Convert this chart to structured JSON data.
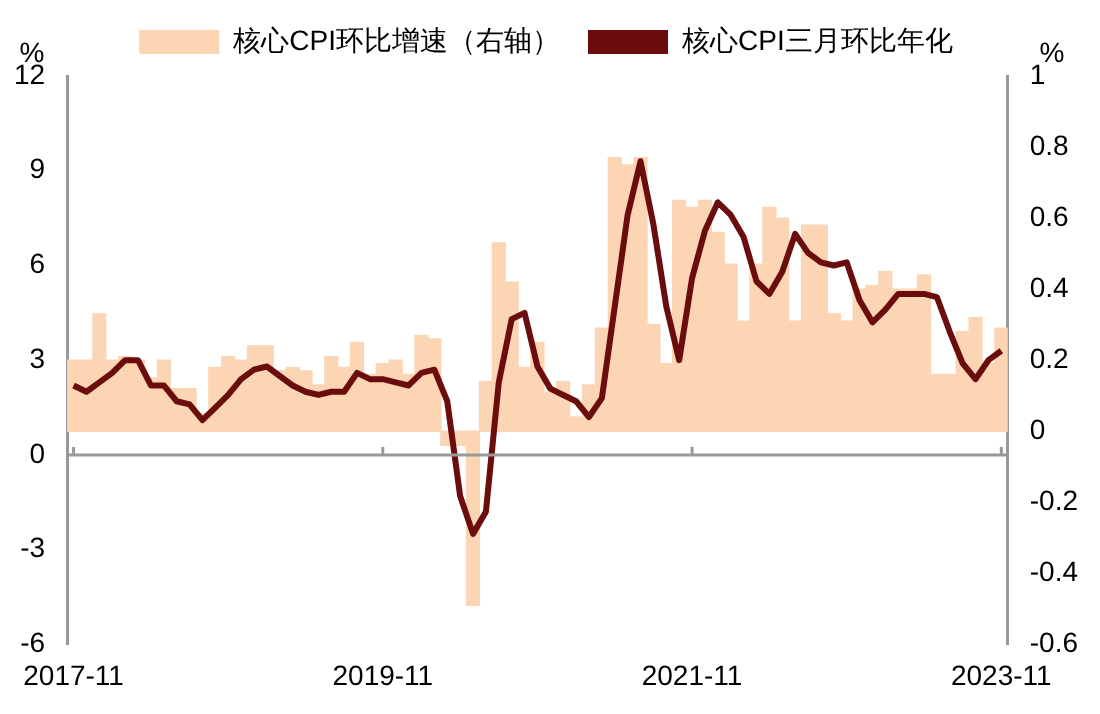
{
  "chart_data": {
    "type": "bar",
    "categories": [
      "2017-11",
      null,
      null,
      null,
      null,
      null,
      null,
      null,
      null,
      null,
      null,
      null,
      null,
      null,
      null,
      null,
      null,
      null,
      null,
      null,
      null,
      null,
      null,
      null,
      "2019-11",
      null,
      null,
      null,
      null,
      null,
      null,
      null,
      null,
      null,
      null,
      null,
      null,
      null,
      null,
      null,
      null,
      null,
      null,
      null,
      null,
      null,
      null,
      null,
      "2021-11",
      null,
      null,
      null,
      null,
      null,
      null,
      null,
      null,
      null,
      null,
      null,
      null,
      null,
      null,
      null,
      null,
      null,
      null,
      null,
      null,
      null,
      null,
      null,
      "2023-11"
    ],
    "series": [
      {
        "name": "核心CPI环比增速（右轴）",
        "axis": "y2",
        "color": "#fcd5b4",
        "values": [
          0.2,
          0.2,
          0.33,
          0.2,
          0.21,
          0.2,
          0.15,
          0.2,
          0.12,
          0.12,
          0.05,
          0.18,
          0.21,
          0.2,
          0.24,
          0.24,
          0.17,
          0.18,
          0.17,
          0.13,
          0.21,
          0.18,
          0.25,
          0.16,
          0.19,
          0.2,
          0.16,
          0.27,
          0.26,
          -0.04,
          -0.04,
          -0.49,
          0.14,
          0.53,
          0.42,
          0.18,
          0.25,
          0.11,
          0.14,
          0.04,
          0.13,
          0.29,
          0.77,
          0.75,
          0.77,
          0.3,
          0.19,
          0.65,
          0.63,
          0.65,
          0.56,
          0.47,
          0.31,
          0.47,
          0.63,
          0.6,
          0.31,
          0.58,
          0.58,
          0.33,
          0.31,
          0.4,
          0.41,
          0.45,
          0.4,
          0.4,
          0.44,
          0.16,
          0.16,
          0.28,
          0.32,
          0.19,
          0.29
        ]
      },
      {
        "name": "核心CPI三月环比年化",
        "type": "line",
        "color": "#6b0d0d",
        "values": [
          2.2,
          2.0,
          2.3,
          2.6,
          3.0,
          3.0,
          2.2,
          2.2,
          1.7,
          1.6,
          1.1,
          1.5,
          1.9,
          2.4,
          2.7,
          2.8,
          2.5,
          2.2,
          2.0,
          1.9,
          2.0,
          2.0,
          2.6,
          2.4,
          2.4,
          2.3,
          2.2,
          2.6,
          2.7,
          1.7,
          -1.3,
          -2.5,
          -1.8,
          2.3,
          4.3,
          4.5,
          2.8,
          2.1,
          1.9,
          1.7,
          1.2,
          1.8,
          4.7,
          7.6,
          9.3,
          7.3,
          4.7,
          3.0,
          5.6,
          7.1,
          8.0,
          7.6,
          6.9,
          5.5,
          5.1,
          5.8,
          7.0,
          6.4,
          6.1,
          6.0,
          6.1,
          4.9,
          4.2,
          4.6,
          5.1,
          5.1,
          5.1,
          5.0,
          3.9,
          2.9,
          2.4,
          3.0,
          3.3
        ]
      }
    ],
    "ylabel": "%",
    "y2label": "%",
    "ylim": [
      -6,
      12
    ],
    "yticks": [
      -6,
      -3,
      0,
      3,
      6,
      9,
      12
    ],
    "y2lim": [
      -0.6,
      1
    ],
    "y2ticks": [
      -0.6,
      -0.4,
      -0.2,
      0,
      0.2,
      0.4,
      0.6,
      0.8,
      1
    ],
    "ref_lines": [
      {
        "axis": "y",
        "value": 0,
        "color": "#999999"
      }
    ],
    "grid": false,
    "legend": "top",
    "marker": "none",
    "line_style": "solid"
  }
}
